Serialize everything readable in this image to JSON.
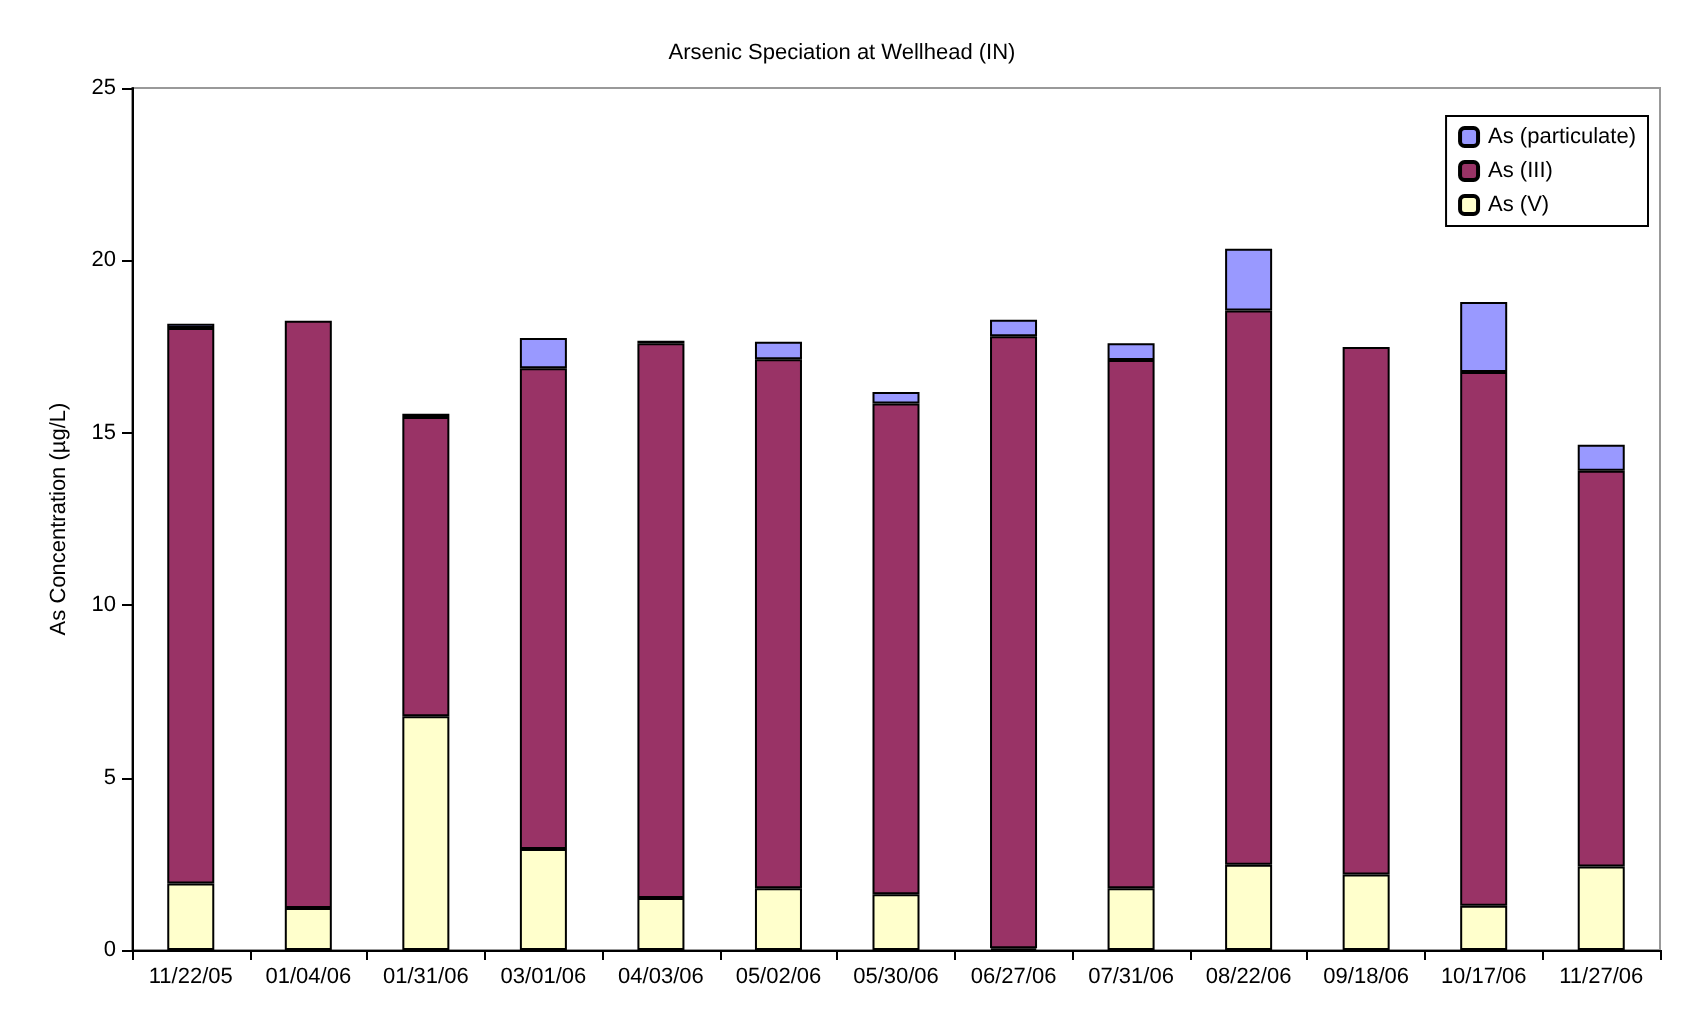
{
  "chart_data": {
    "type": "bar",
    "title": "Arsenic Speciation at Wellhead (IN)",
    "ylabel": "As Concentration (µg/L)",
    "categories": [
      "11/22/05",
      "01/04/06",
      "01/31/06",
      "03/01/06",
      "04/03/06",
      "05/02/06",
      "05/30/06",
      "06/27/06",
      "07/31/06",
      "08/22/06",
      "09/18/06",
      "10/17/06",
      "11/27/06"
    ],
    "series": [
      {
        "name": "As (V)",
        "color": "#ffffcc",
        "values": [
          1.93,
          1.22,
          6.78,
          2.93,
          1.51,
          1.79,
          1.62,
          0.05,
          1.79,
          2.47,
          2.19,
          1.28,
          2.42
        ]
      },
      {
        "name": "As (III)",
        "color": "#993366",
        "values": [
          16.11,
          17.03,
          8.68,
          13.94,
          16.09,
          15.34,
          14.23,
          17.75,
          15.32,
          16.08,
          15.3,
          15.48,
          11.48
        ]
      },
      {
        "name": "As (particulate)",
        "color": "#9999ff",
        "values": [
          0.12,
          null,
          0.09,
          0.88,
          0.07,
          0.51,
          0.33,
          0.48,
          0.49,
          1.79,
          null,
          2.03,
          0.75
        ]
      }
    ],
    "stacked": true,
    "ylim": [
      0,
      25
    ],
    "yticks": [
      0,
      5,
      10,
      15,
      20,
      25
    ],
    "grid": false,
    "legend": "top right"
  }
}
